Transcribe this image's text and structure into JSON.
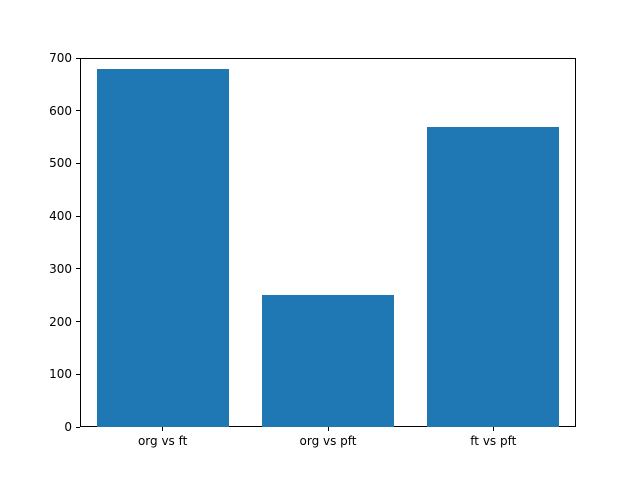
{
  "chart_data": {
    "type": "bar",
    "title": "",
    "xlabel": "",
    "ylabel": "",
    "categories": [
      "org vs ft",
      "org vs pft",
      "ft vs pft"
    ],
    "values": [
      680,
      250,
      570
    ],
    "ylim": [
      0,
      700
    ],
    "yticks": [
      0,
      100,
      200,
      300,
      400,
      500,
      600,
      700
    ],
    "bar_color": "#1f77b4",
    "background": "#ffffff",
    "grid": false,
    "legend_position": "none"
  }
}
